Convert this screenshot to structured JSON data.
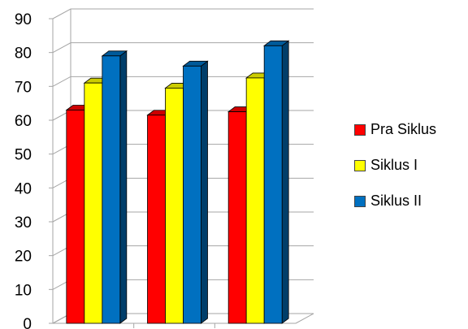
{
  "chart_data": {
    "type": "bar",
    "style": "3d-clustered-column",
    "categories": [
      "",
      "",
      ""
    ],
    "series": [
      {
        "name": "Pra Siklus",
        "color": "#ff0000",
        "values": [
          63,
          61.5,
          62.5
        ]
      },
      {
        "name": "Siklus I",
        "color": "#ffff00",
        "values": [
          71,
          69.5,
          72.5
        ]
      },
      {
        "name": "Siklus II",
        "color": "#0070c0",
        "values": [
          79,
          76,
          82
        ]
      }
    ],
    "ylim": [
      0,
      90
    ],
    "yticks": [
      "0",
      "10",
      "20",
      "30",
      "40",
      "50",
      "60",
      "70",
      "80",
      "90"
    ],
    "grid": true,
    "legend_position": "right"
  }
}
